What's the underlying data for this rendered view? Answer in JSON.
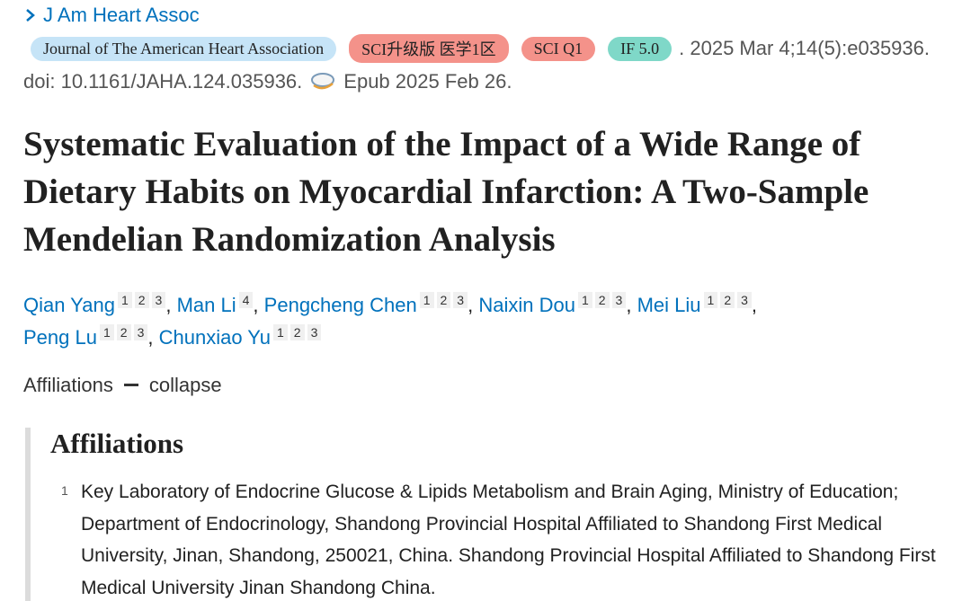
{
  "journal_link": "J Am Heart Assoc",
  "badges": [
    "Journal of The American Heart Association",
    "SCI升级版 医学1区",
    "SCI Q1",
    "IF 5.0"
  ],
  "citation": ". 2025 Mar 4;14(5):e035936.",
  "doi": "doi: 10.1161/JAHA.124.035936.",
  "epub": "Epub 2025 Feb 26.",
  "title": "Systematic Evaluation of the Impact of a Wide Range of Dietary Habits on Myocardial Infarction: A Two-Sample Mendelian Randomization Analysis",
  "author_separator": ",",
  "authors": [
    {
      "name": "Qian Yang",
      "affiliations": [
        "1",
        "2",
        "3"
      ]
    },
    {
      "name": "Man Li",
      "affiliations": [
        "4"
      ]
    },
    {
      "name": "Pengcheng Chen",
      "affiliations": [
        "1",
        "2",
        "3"
      ]
    },
    {
      "name": "Naixin Dou",
      "affiliations": [
        "1",
        "2",
        "3"
      ]
    },
    {
      "name": "Mei Liu",
      "affiliations": [
        "1",
        "2",
        "3"
      ]
    },
    {
      "name": "Peng Lu",
      "affiliations": [
        "1",
        "2",
        "3"
      ]
    },
    {
      "name": "Chunxiao Yu",
      "affiliations": [
        "1",
        "2",
        "3"
      ]
    }
  ],
  "affiliations_toggle": {
    "label": "Affiliations",
    "action": "collapse"
  },
  "affiliations": {
    "heading": "Affiliations",
    "items": [
      {
        "number": "1",
        "text": "Key Laboratory of Endocrine Glucose & Lipids Metabolism and Brain Aging, Ministry of Education; Department of Endocrinology, Shandong Provincial Hospital Affiliated to Shandong First Medical University, Jinan, Shandong, 250021, China. Shandong Provincial Hospital Affiliated to Shandong First Medical University Jinan Shandong China."
      }
    ]
  }
}
